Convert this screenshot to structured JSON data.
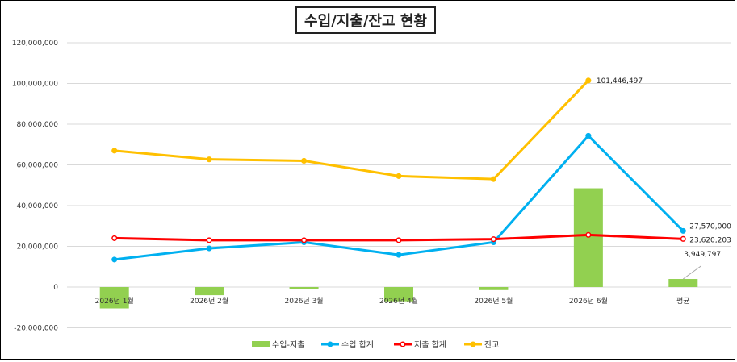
{
  "chart_data": {
    "type": "bar+line",
    "title": "수입/지출/잔고 현황",
    "categories": [
      "2026년 1월",
      "2026년 2월",
      "2026년 3월",
      "2026년 4월",
      "2026년 5월",
      "2026년 6월",
      "평균"
    ],
    "ylim": [
      -20000000,
      120000000
    ],
    "yticks": [
      -20000000,
      0,
      20000000,
      40000000,
      60000000,
      80000000,
      100000000,
      120000000
    ],
    "ytick_labels": [
      "-20,000,000",
      "0",
      "20,000,000",
      "40,000,000",
      "60,000,000",
      "80,000,000",
      "100,000,000",
      "120,000,000"
    ],
    "grid": true,
    "legend_position": "bottom",
    "series": [
      {
        "name": "수입-지출",
        "kind": "bar",
        "color": "#92D050",
        "values": [
          -10500000,
          -4000000,
          -1000000,
          -7000000,
          -1500000,
          48500000,
          3949797
        ]
      },
      {
        "name": "수입 합계",
        "kind": "line",
        "color": "#00B0F0",
        "values": [
          13500000,
          19000000,
          22000000,
          15800000,
          22000000,
          74300000,
          27570000
        ]
      },
      {
        "name": "지출 합계",
        "kind": "line",
        "color": "#FF0000",
        "values": [
          24000000,
          23000000,
          23000000,
          23000000,
          23500000,
          25600000,
          23620203
        ]
      },
      {
        "name": "잔고",
        "kind": "line",
        "color": "#FFC000",
        "values": [
          67000000,
          62700000,
          62000000,
          54500000,
          53000000,
          101446497,
          null
        ]
      }
    ],
    "data_labels": [
      {
        "series": "잔고",
        "index": 5,
        "text": "101,446,497"
      },
      {
        "series": "수입 합계",
        "index": 6,
        "text": "27,570,000"
      },
      {
        "series": "지출 합계",
        "index": 6,
        "text": "23,620,203"
      },
      {
        "series": "수입-지출",
        "index": 6,
        "text": "3,949,797"
      }
    ]
  }
}
